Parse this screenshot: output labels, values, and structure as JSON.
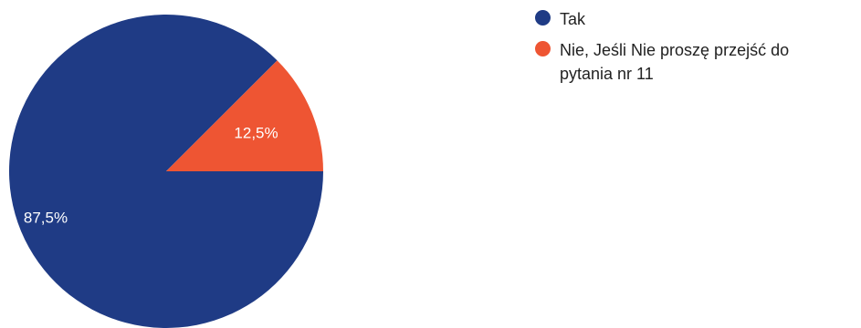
{
  "chart_data": {
    "type": "pie",
    "title": "",
    "slices": [
      {
        "label": "Tak",
        "value": 87.5,
        "display": "87,5%",
        "color": "#1f3b85"
      },
      {
        "label": "Nie, Jeśli Nie proszę przejść do\npytania nr 11",
        "value": 12.5,
        "display": "12,5%",
        "color": "#ee5533"
      }
    ],
    "legend_position": "right",
    "start_angle_deg": 0,
    "direction": "counterclockwise"
  }
}
